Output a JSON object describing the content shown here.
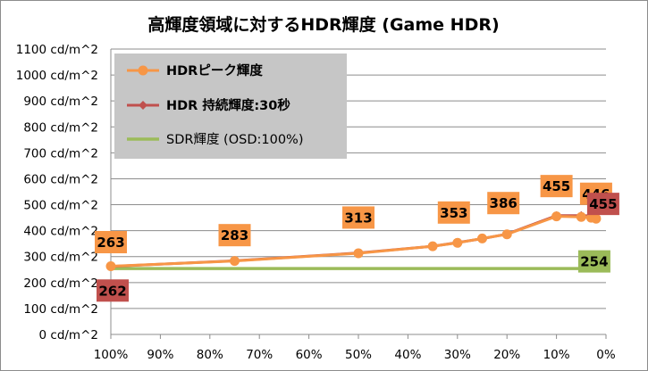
{
  "chart_data": {
    "type": "line",
    "title": "高輝度領域に対するHDR輝度 (Game HDR)",
    "x_tick_labels": [
      "100%",
      "90%",
      "80%",
      "70%",
      "60%",
      "50%",
      "40%",
      "30%",
      "20%",
      "10%",
      "0%"
    ],
    "y_tick_labels": [
      "0 cd/m^2",
      "100 cd/m^2",
      "200 cd/m^2",
      "300 cd/m^2",
      "400 cd/m^2",
      "500 cd/m^2",
      "600 cd/m^2",
      "700 cd/m^2",
      "800 cd/m^2",
      "900 cd/m^2",
      "1000 cd/m^2",
      "1100 cd/m^2"
    ],
    "xlim": [
      100,
      0
    ],
    "ylim": [
      0,
      1100
    ],
    "grid": "horizontal",
    "legend_position": "top-left",
    "series": [
      {
        "name": "HDRピーク輝度",
        "color": "#F79646",
        "marker": "circle",
        "x": [
          100,
          75,
          50,
          35,
          30,
          25,
          20,
          10,
          5,
          3,
          2
        ],
        "y": [
          263,
          283,
          313,
          340,
          353,
          370,
          386,
          455,
          453,
          450,
          446
        ]
      },
      {
        "name": "HDR 持続輝度:30秒",
        "color": "#C0504D",
        "marker": "diamond",
        "x": [
          100,
          75,
          50,
          35,
          30,
          25,
          20,
          10,
          5,
          3,
          2
        ],
        "y": [
          262,
          284,
          314,
          340,
          354,
          369,
          387,
          458,
          458,
          457,
          455
        ]
      },
      {
        "name": "SDR輝度 (OSD:100%)",
        "color": "#9BBB59",
        "marker": "none",
        "x": [
          100,
          2
        ],
        "y": [
          254,
          254
        ]
      }
    ],
    "data_labels": [
      {
        "text": "263",
        "x": 100,
        "y": 263,
        "bg": "#F79646"
      },
      {
        "text": "283",
        "x": 75,
        "y": 283,
        "bg": "#F79646"
      },
      {
        "text": "313",
        "x": 50,
        "y": 313,
        "bg": "#F79646"
      },
      {
        "text": "353",
        "x": 30,
        "y": 353,
        "bg": "#F79646"
      },
      {
        "text": "386",
        "x": 20,
        "y": 386,
        "bg": "#F79646"
      },
      {
        "text": "455",
        "x": 10,
        "y": 455,
        "bg": "#F79646"
      },
      {
        "text": "446",
        "x": 2,
        "y": 446,
        "bg": "#F79646"
      },
      {
        "text": "262",
        "x": 100,
        "y": 262,
        "bg": "#C0504D"
      },
      {
        "text": "455",
        "x": 2,
        "y": 455,
        "bg": "#C0504D"
      },
      {
        "text": "254",
        "x": 2,
        "y": 254,
        "bg": "#9BBB59"
      }
    ]
  }
}
